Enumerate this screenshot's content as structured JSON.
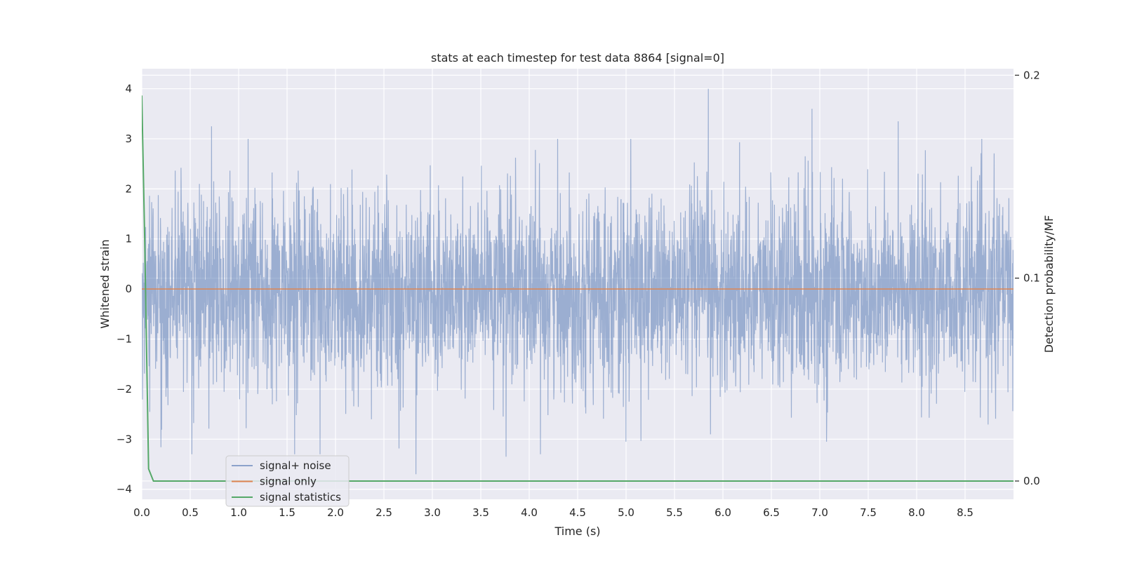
{
  "chart_data": {
    "type": "line",
    "title": "stats at each timestep for test data 8864 [signal=0]",
    "xlabel": "Time (s)",
    "ylabel": "Whitened strain",
    "y2label": "Detection probability/MF",
    "xlim": [
      0.0,
      9.0
    ],
    "ylim": [
      -4.2,
      4.4
    ],
    "y2lim": [
      -0.009,
      0.2032
    ],
    "x_ticks": [
      "0.0",
      "0.5",
      "1.0",
      "1.5",
      "2.0",
      "2.5",
      "3.0",
      "3.5",
      "4.0",
      "4.5",
      "5.0",
      "5.5",
      "6.0",
      "6.5",
      "7.0",
      "7.5",
      "8.0",
      "8.5"
    ],
    "y_ticks": [
      "−4",
      "−3",
      "−2",
      "−1",
      "0",
      "1",
      "2",
      "3",
      "4"
    ],
    "y2_ticks": [
      "0.0",
      "0.1",
      "0.2"
    ],
    "grid": true,
    "background": "#eaeaf2",
    "legend_position": "lower-left",
    "series": [
      {
        "name": "signal+ noise",
        "axis": "left",
        "color": "#4c72b0",
        "opacity": 0.5,
        "description_values": "dense noise, approx. between -3.7 and 4.0",
        "peaks": [
          {
            "x": 0.72,
            "y": 3.25
          },
          {
            "x": 1.84,
            "y": -3.3
          },
          {
            "x": 2.83,
            "y": -3.7
          },
          {
            "x": 3.76,
            "y": -3.35
          },
          {
            "x": 5.85,
            "y": 4.0
          },
          {
            "x": 6.92,
            "y": 3.6
          },
          {
            "x": 7.81,
            "y": 3.35
          },
          {
            "x": 7.07,
            "y": -3.05
          },
          {
            "x": 5.0,
            "y": -3.05
          }
        ]
      },
      {
        "name": "signal only",
        "axis": "left",
        "color": "#dd8452",
        "x": [
          0.0,
          9.0
        ],
        "y": [
          0.0,
          0.0
        ]
      },
      {
        "name": "signal statistics",
        "axis": "right",
        "color": "#55a868",
        "x": [
          0.0,
          0.03,
          0.07,
          0.12,
          0.2,
          1.0,
          2.0,
          3.0,
          4.0,
          5.0,
          6.0,
          7.0,
          8.0,
          8.3,
          9.0
        ],
        "y": [
          0.19,
          0.12,
          0.006,
          0.0,
          0.0,
          0.0,
          0.0,
          0.0,
          0.0,
          0.0,
          0.0,
          0.0,
          0.0,
          0.0,
          0.0
        ]
      }
    ]
  }
}
